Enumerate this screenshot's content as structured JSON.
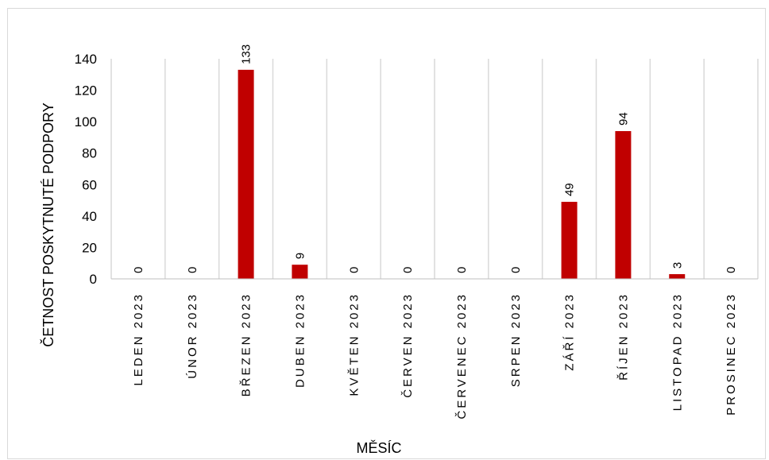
{
  "chart_data": {
    "type": "bar",
    "categories": [
      "LEDEN 2023",
      "ÚNOR 2023",
      "BŘEZEN 2023",
      "DUBEN 2023",
      "KVĚTEN 2023",
      "ČERVEN 2023",
      "ČERVENEC 2023",
      "SRPEN 2023",
      "ZÁŘÍ 2023",
      "ŘÍJEN 2023",
      "LISTOPAD 2023",
      "PROSINEC 2023"
    ],
    "values": [
      0,
      0,
      133,
      9,
      0,
      0,
      0,
      0,
      49,
      94,
      3,
      0
    ],
    "data_labels": [
      "0",
      "0",
      "133",
      "9",
      "0",
      "0",
      "0",
      "0",
      "49",
      "94",
      "3",
      "0"
    ],
    "ylim": [
      0,
      140
    ],
    "yticks": [
      0,
      20,
      40,
      60,
      80,
      100,
      120,
      140
    ],
    "ytick_labels": [
      "0",
      "20",
      "40",
      "60",
      "80",
      "100",
      "120",
      "140"
    ],
    "xlabel": "MĚSÍC",
    "ylabel": "ČETNOST POSKYTNUTÉ PODPORY",
    "bar_color": "#C00000",
    "grid": "vertical category gridlines",
    "legend": "none"
  }
}
